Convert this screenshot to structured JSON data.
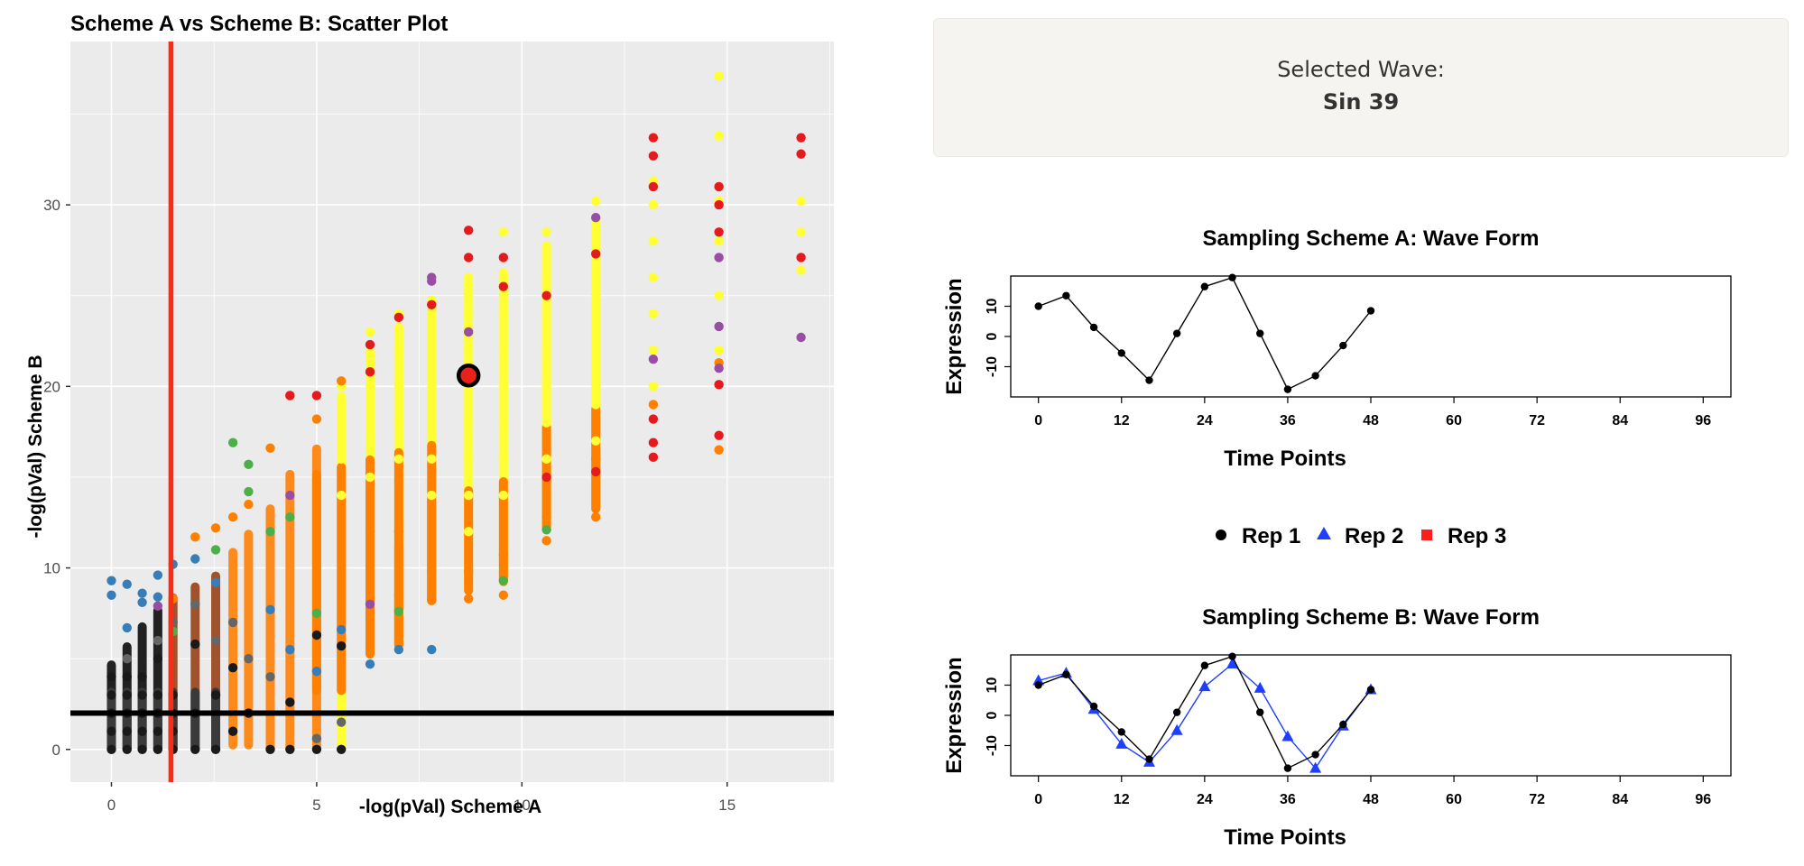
{
  "scatter": {
    "title": "Scheme A vs Scheme B: Scatter Plot",
    "xlabel": "-log(pVal)  Scheme A",
    "ylabel": "-log(pVal) Scheme B",
    "xlim": [
      -1.0,
      17.6
    ],
    "ylim": [
      -1.8,
      39.0
    ],
    "xticks": [
      0,
      5,
      10,
      15
    ],
    "yticks": [
      0,
      10,
      20,
      30
    ],
    "vline_x": 1.45,
    "vline_color": "#ff2a14",
    "hline_y": 2.0,
    "hline_color": "#000000",
    "panel_bg": "#ebebeb",
    "grid": true,
    "highlight": {
      "x": 8.7,
      "y": 20.6,
      "fill": "#e8221b",
      "stroke": "#000000"
    },
    "colors": {
      "yellow": "#ffff33",
      "orange": "#ff7f00",
      "red": "#e41a1c",
      "purple": "#984ea3",
      "green": "#4daf4a",
      "blue": "#377eb8",
      "brown": "#a65628",
      "black": "#1a1a1a",
      "gray": "#666666",
      "lightgray": "#bbbbbb"
    },
    "columns_x": [
      0,
      0.38,
      0.75,
      1.13,
      1.5,
      2.04,
      2.54,
      2.96,
      3.34,
      3.87,
      4.35,
      5.0,
      5.6,
      6.3,
      7.0,
      7.8,
      8.7,
      9.55,
      10.6,
      11.8,
      13.2,
      14.8,
      16.8
    ]
  },
  "chart_data": [
    {
      "type": "scatter",
      "title": "Scheme A vs Scheme B: Scatter Plot",
      "xlabel": "-log(pVal)  Scheme A",
      "ylabel": "-log(pVal) Scheme B",
      "xlim": [
        -1.0,
        17.6
      ],
      "ylim": [
        -1.8,
        39.0
      ],
      "grid": true,
      "series": [
        {
          "color": "yellow",
          "points": [
            [
              5.6,
              14
            ],
            [
              5.6,
              16
            ],
            [
              5.6,
              18
            ],
            [
              5.6,
              20
            ],
            [
              6.3,
              15
            ],
            [
              6.3,
              17
            ],
            [
              6.3,
              19
            ],
            [
              6.3,
              21
            ],
            [
              6.3,
              23
            ],
            [
              7.0,
              16
            ],
            [
              7.0,
              18
            ],
            [
              7.0,
              20
            ],
            [
              7.0,
              22
            ],
            [
              7.0,
              24
            ],
            [
              7.8,
              14
            ],
            [
              7.8,
              16
            ],
            [
              7.8,
              18
            ],
            [
              7.8,
              20
            ],
            [
              7.8,
              22
            ],
            [
              7.8,
              24.5
            ],
            [
              8.7,
              12
            ],
            [
              8.7,
              14
            ],
            [
              8.7,
              16
            ],
            [
              8.7,
              18
            ],
            [
              8.7,
              20
            ],
            [
              8.7,
              22
            ],
            [
              8.7,
              24
            ],
            [
              8.7,
              26
            ],
            [
              9.55,
              14
            ],
            [
              9.55,
              16
            ],
            [
              9.55,
              18
            ],
            [
              9.55,
              20
            ],
            [
              9.55,
              22
            ],
            [
              9.55,
              24
            ],
            [
              9.55,
              26
            ],
            [
              9.55,
              28.5
            ],
            [
              10.6,
              16
            ],
            [
              10.6,
              18
            ],
            [
              10.6,
              20
            ],
            [
              10.6,
              22
            ],
            [
              10.6,
              24
            ],
            [
              10.6,
              26
            ],
            [
              10.6,
              28.5
            ],
            [
              11.8,
              17
            ],
            [
              11.8,
              19
            ],
            [
              11.8,
              21
            ],
            [
              11.8,
              23
            ],
            [
              11.8,
              25
            ],
            [
              11.8,
              27
            ],
            [
              11.8,
              29
            ],
            [
              11.8,
              30.2
            ],
            [
              13.2,
              20
            ],
            [
              13.2,
              22
            ],
            [
              13.2,
              24
            ],
            [
              13.2,
              26
            ],
            [
              13.2,
              28
            ],
            [
              13.2,
              30
            ],
            [
              13.2,
              31.3
            ],
            [
              14.8,
              22
            ],
            [
              14.8,
              25
            ],
            [
              14.8,
              28
            ],
            [
              14.8,
              30.2
            ],
            [
              14.8,
              33.8
            ],
            [
              14.8,
              37.1
            ],
            [
              16.8,
              26.4
            ],
            [
              16.8,
              28.5
            ],
            [
              16.8,
              30.2
            ]
          ]
        },
        {
          "color": "orange",
          "points": [
            [
              1.5,
              8.3
            ],
            [
              2.04,
              11.7
            ],
            [
              2.54,
              12.2
            ],
            [
              2.96,
              12.8
            ],
            [
              3.34,
              13.5
            ],
            [
              3.87,
              16.6
            ],
            [
              4.35,
              19.5
            ],
            [
              5.0,
              18.2
            ],
            [
              5.6,
              20.3
            ],
            [
              6.3,
              7.5
            ],
            [
              6.3,
              12
            ],
            [
              7.0,
              8.5
            ],
            [
              7.0,
              12
            ],
            [
              7.8,
              8.2
            ],
            [
              7.8,
              9.8
            ],
            [
              8.7,
              8.3
            ],
            [
              8.7,
              9.8
            ],
            [
              9.55,
              8.5
            ],
            [
              9.55,
              10.7
            ],
            [
              10.6,
              11.5
            ],
            [
              10.6,
              12.8
            ],
            [
              11.8,
              12.8
            ],
            [
              11.8,
              16
            ],
            [
              13.2,
              19
            ],
            [
              14.8,
              16.5
            ],
            [
              14.8,
              21.3
            ]
          ]
        },
        {
          "color": "red",
          "points": [
            [
              4.35,
              19.5
            ],
            [
              5.0,
              19.5
            ],
            [
              6.3,
              22.3
            ],
            [
              6.3,
              20.8
            ],
            [
              7.0,
              23.8
            ],
            [
              7.8,
              24.5
            ],
            [
              8.7,
              27.1
            ],
            [
              8.7,
              28.6
            ],
            [
              9.55,
              25.5
            ],
            [
              9.55,
              27.1
            ],
            [
              10.6,
              25
            ],
            [
              10.6,
              15
            ],
            [
              11.8,
              27.3
            ],
            [
              11.8,
              15.3
            ],
            [
              13.2,
              33.7
            ],
            [
              13.2,
              32.7
            ],
            [
              13.2,
              31.0
            ],
            [
              13.2,
              18.2
            ],
            [
              13.2,
              16.9
            ],
            [
              13.2,
              16.1
            ],
            [
              14.8,
              31.0
            ],
            [
              14.8,
              30.0
            ],
            [
              14.8,
              28.5
            ],
            [
              14.8,
              20.1
            ],
            [
              14.8,
              17.3
            ],
            [
              16.8,
              33.7
            ],
            [
              16.8,
              32.8
            ],
            [
              16.8,
              27.1
            ]
          ]
        },
        {
          "color": "purple",
          "points": [
            [
              1.13,
              7.9
            ],
            [
              4.35,
              14
            ],
            [
              6.3,
              8
            ],
            [
              7.8,
              25.8
            ],
            [
              7.8,
              26
            ],
            [
              8.7,
              23
            ],
            [
              11.8,
              29.3
            ],
            [
              13.2,
              21.5
            ],
            [
              14.8,
              27.1
            ],
            [
              14.8,
              23.3
            ],
            [
              14.8,
              21.0
            ],
            [
              16.8,
              22.7
            ]
          ]
        },
        {
          "color": "green",
          "points": [
            [
              1.5,
              6.5
            ],
            [
              2.54,
              11
            ],
            [
              2.96,
              16.9
            ],
            [
              3.34,
              14.2
            ],
            [
              3.34,
              15.7
            ],
            [
              3.87,
              12
            ],
            [
              4.35,
              12.8
            ],
            [
              5.0,
              7.5
            ],
            [
              7.0,
              7.6
            ],
            [
              9.55,
              9.3
            ],
            [
              10.6,
              12.1
            ]
          ]
        },
        {
          "color": "blue",
          "points": [
            [
              0,
              9.3
            ],
            [
              0,
              8.5
            ],
            [
              0.38,
              9.1
            ],
            [
              0.38,
              6.7
            ],
            [
              0.75,
              8.6
            ],
            [
              0.75,
              8.1
            ],
            [
              1.13,
              9.6
            ],
            [
              1.13,
              8.4
            ],
            [
              1.5,
              10.2
            ],
            [
              2.04,
              10.5
            ],
            [
              2.54,
              9.2
            ],
            [
              3.87,
              7.7
            ],
            [
              4.35,
              5.5
            ],
            [
              5.0,
              4.3
            ],
            [
              5.6,
              6.6
            ],
            [
              6.3,
              4.7
            ],
            [
              7.0,
              5.5
            ],
            [
              7.8,
              5.5
            ]
          ]
        },
        {
          "color": "black",
          "points": [
            [
              0,
              0
            ],
            [
              0,
              1
            ],
            [
              0,
              2
            ],
            [
              0,
              3
            ],
            [
              0,
              4
            ],
            [
              0.38,
              0
            ],
            [
              0.38,
              1
            ],
            [
              0.38,
              2
            ],
            [
              0.38,
              3
            ],
            [
              0.38,
              4
            ],
            [
              0.75,
              0
            ],
            [
              0.75,
              1
            ],
            [
              0.75,
              2
            ],
            [
              0.75,
              3
            ],
            [
              0.75,
              4
            ],
            [
              1.13,
              0
            ],
            [
              1.13,
              1
            ],
            [
              1.13,
              2
            ],
            [
              1.13,
              3
            ],
            [
              1.13,
              5
            ],
            [
              1.5,
              0
            ],
            [
              1.5,
              1
            ],
            [
              1.5,
              2
            ],
            [
              1.5,
              3
            ],
            [
              2.04,
              0
            ],
            [
              2.04,
              2
            ],
            [
              2.04,
              5.8
            ],
            [
              2.54,
              0
            ],
            [
              2.54,
              3
            ],
            [
              2.96,
              1
            ],
            [
              2.96,
              4.5
            ],
            [
              3.34,
              2
            ],
            [
              3.87,
              0
            ],
            [
              4.35,
              0
            ],
            [
              4.35,
              2.6
            ],
            [
              5.0,
              0
            ],
            [
              5.0,
              6.3
            ],
            [
              5.6,
              0
            ],
            [
              5.6,
              5.7
            ]
          ]
        },
        {
          "color": "gray",
          "points": [
            [
              0.38,
              5
            ],
            [
              1.13,
              6
            ],
            [
              1.5,
              7
            ],
            [
              2.04,
              8
            ],
            [
              2.54,
              6
            ],
            [
              2.96,
              7
            ],
            [
              3.34,
              5
            ],
            [
              3.87,
              4
            ],
            [
              5.0,
              0.6
            ],
            [
              5.6,
              1.5
            ]
          ]
        }
      ],
      "vline_x": 1.45,
      "hline_y": 2.0,
      "highlight": {
        "x": 8.7,
        "y": 20.6
      }
    },
    {
      "type": "line",
      "title": "Sampling Scheme A: Wave Form",
      "xlabel": "Time Points",
      "ylabel": "Expression",
      "xlim": [
        -4,
        100
      ],
      "ylim": [
        -20,
        20
      ],
      "xticks": [
        0,
        12,
        24,
        36,
        48,
        60,
        72,
        84,
        96
      ],
      "yticks": [
        -10,
        0,
        10
      ],
      "series": [
        {
          "name": "Rep 1",
          "color": "#000000",
          "marker": "circle",
          "x": [
            0,
            4,
            8,
            12,
            16,
            20,
            24,
            28,
            32,
            36,
            40,
            44,
            48
          ],
          "y": [
            10,
            13.5,
            3,
            -5.5,
            -14.5,
            1,
            16.5,
            19.5,
            1,
            -17.5,
            -13,
            -3,
            8.5
          ]
        }
      ]
    },
    {
      "type": "line",
      "title": "Sampling Scheme B: Wave Form",
      "xlabel": "Time Points",
      "ylabel": "Expression",
      "xlim": [
        -4,
        100
      ],
      "ylim": [
        -20,
        20
      ],
      "xticks": [
        0,
        12,
        24,
        36,
        48,
        60,
        72,
        84,
        96
      ],
      "yticks": [
        -10,
        0,
        10
      ],
      "series": [
        {
          "name": "Rep 1",
          "color": "#000000",
          "marker": "circle",
          "x": [
            0,
            4,
            8,
            12,
            16,
            20,
            24,
            28,
            32,
            36,
            40,
            44,
            48
          ],
          "y": [
            10,
            13.5,
            3,
            -5.5,
            -14.5,
            1,
            16.5,
            19.5,
            1,
            -17.5,
            -13,
            -3,
            8.5
          ]
        },
        {
          "name": "Rep 2",
          "color": "#1f3fff",
          "marker": "triangle",
          "x": [
            0,
            4,
            8,
            12,
            16,
            20,
            24,
            28,
            32,
            36,
            40,
            44,
            48
          ],
          "y": [
            11.5,
            14,
            2,
            -9.5,
            -15.5,
            -5,
            9.5,
            17,
            9,
            -7,
            -17.5,
            -3.5,
            8.5
          ]
        }
      ]
    }
  ],
  "info": {
    "label": "Selected Wave:",
    "value": "Sin 39"
  },
  "legend": {
    "items": [
      {
        "label": "Rep 1",
        "color": "#000000",
        "marker": "circle"
      },
      {
        "label": "Rep 2",
        "color": "#1f3fff",
        "marker": "triangle"
      },
      {
        "label": "Rep 3",
        "color": "#ff1e1e",
        "marker": "square"
      }
    ]
  }
}
